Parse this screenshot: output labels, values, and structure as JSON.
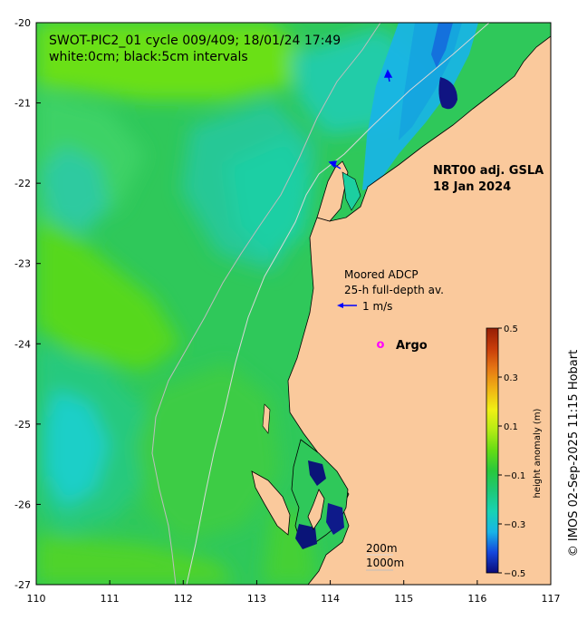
{
  "title": {
    "line1": "SWOT-PIC2_01 cycle 009/409; 18/01/24 17:49",
    "line2": "white:0cm; black:5cm intervals"
  },
  "product": {
    "line1": "NRT00 adj. GSLA",
    "line2": "18 Jan 2024"
  },
  "adcp": {
    "line1": "Moored ADCP",
    "line2": "25-h full-depth av.",
    "scale_label": "1 m/s"
  },
  "argo": {
    "symbol": "o",
    "label": "Argo"
  },
  "contours": {
    "shallow": "200m",
    "deep": "1000m"
  },
  "axes": {
    "x_ticks": [
      "110",
      "111",
      "112",
      "113",
      "114",
      "115",
      "116",
      "117"
    ],
    "y_ticks": [
      "-20",
      "-21",
      "-22",
      "-23",
      "-24",
      "-25",
      "-26",
      "-27"
    ],
    "lon_range": [
      110,
      117
    ],
    "lat_range": [
      -27,
      -20
    ]
  },
  "colorbar": {
    "label": "height anomaly (m)",
    "ticks": [
      "0.5",
      "0.3",
      "0.1",
      "−0.1",
      "−0.3",
      "−0.5"
    ],
    "range": [
      -0.5,
      0.5
    ],
    "colors": [
      "#0a0a78",
      "#1446dc",
      "#19b4e6",
      "#19d2b4",
      "#1ec878",
      "#28c83c",
      "#64dc14",
      "#b4eb14",
      "#f0f014",
      "#f0b414",
      "#e67814",
      "#c83c0a",
      "#961e05"
    ]
  },
  "credit": "© IMOS 02-Sep-2025 11:15 Hobart",
  "colors": {
    "land": "#fac99c",
    "ocean_base": "#2fc85a",
    "coastline": "#000000",
    "isobath": "#bdbdbd",
    "argo": "#ff00ff",
    "velocity_arrow": "#0000ff"
  }
}
